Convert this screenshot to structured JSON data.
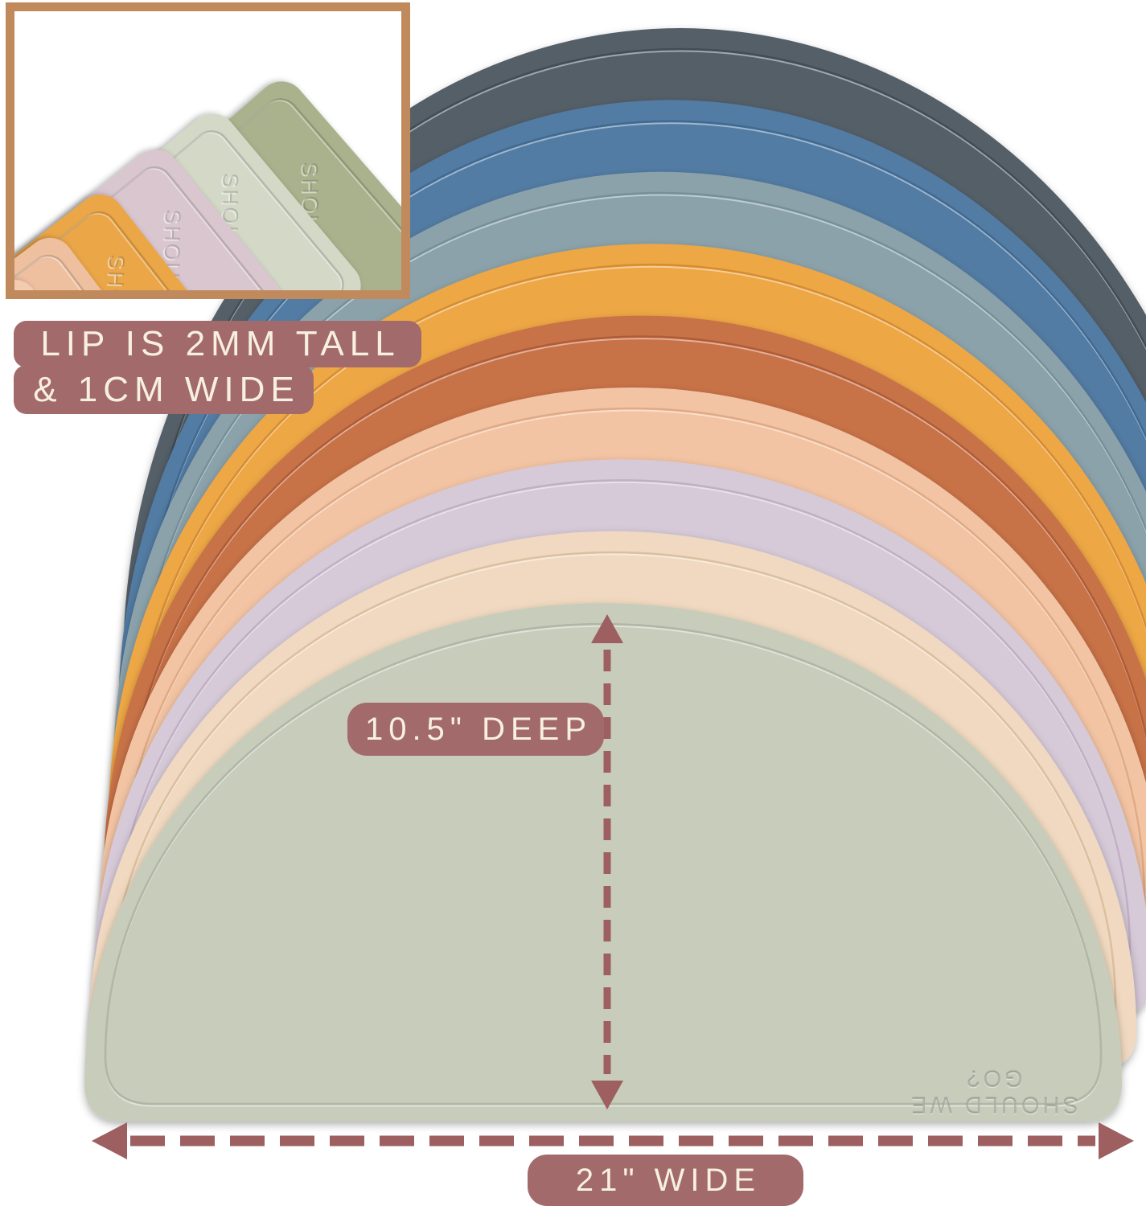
{
  "inset": {
    "border_color": "#c18a5c",
    "embossed_text": "SHOULD WE GO?",
    "mats": [
      {
        "name": "olive-sage",
        "color": "#a9b28c"
      },
      {
        "name": "pale-sage",
        "color": "#d3d8c7"
      },
      {
        "name": "blush-pink",
        "color": "#d9c6cf"
      },
      {
        "name": "mustard",
        "color": "#eaa647"
      },
      {
        "name": "peach",
        "color": "#eec0a0"
      },
      {
        "name": "peach-light",
        "color": "#f2cbb0"
      }
    ]
  },
  "labels": {
    "lip_line1": "LIP IS 2MM TALL",
    "lip_line2": "& 1CM WIDE",
    "depth": "10.5\" DEEP",
    "width": "21\" WIDE"
  },
  "annotation": {
    "arrow_color": "#9d5f5f",
    "label_bg": "#a26a6a",
    "label_text_color": "#f7f0e1"
  },
  "stack": {
    "embossed_text": "SHOULD WE GO?",
    "mats": [
      {
        "name": "charcoal",
        "color": "#545f68",
        "groove": "#434d55"
      },
      {
        "name": "steel-blue",
        "color": "#527ca4",
        "groove": "#416a93"
      },
      {
        "name": "gray-blue",
        "color": "#8ba2ab",
        "groove": "#76909a"
      },
      {
        "name": "mustard",
        "color": "#eea745",
        "groove": "#d68d33"
      },
      {
        "name": "rust",
        "color": "#c87247",
        "groove": "#b05c38"
      },
      {
        "name": "peach",
        "color": "#f3c4a3",
        "groove": "#e0aa85"
      },
      {
        "name": "lilac",
        "color": "#d6c9d8",
        "groove": "#c2afc4"
      },
      {
        "name": "cream",
        "color": "#f0d9c0",
        "groove": "#dcbf9f"
      },
      {
        "name": "sage",
        "color": "#c7ccbb",
        "groove": "#b1b7a4"
      }
    ]
  }
}
